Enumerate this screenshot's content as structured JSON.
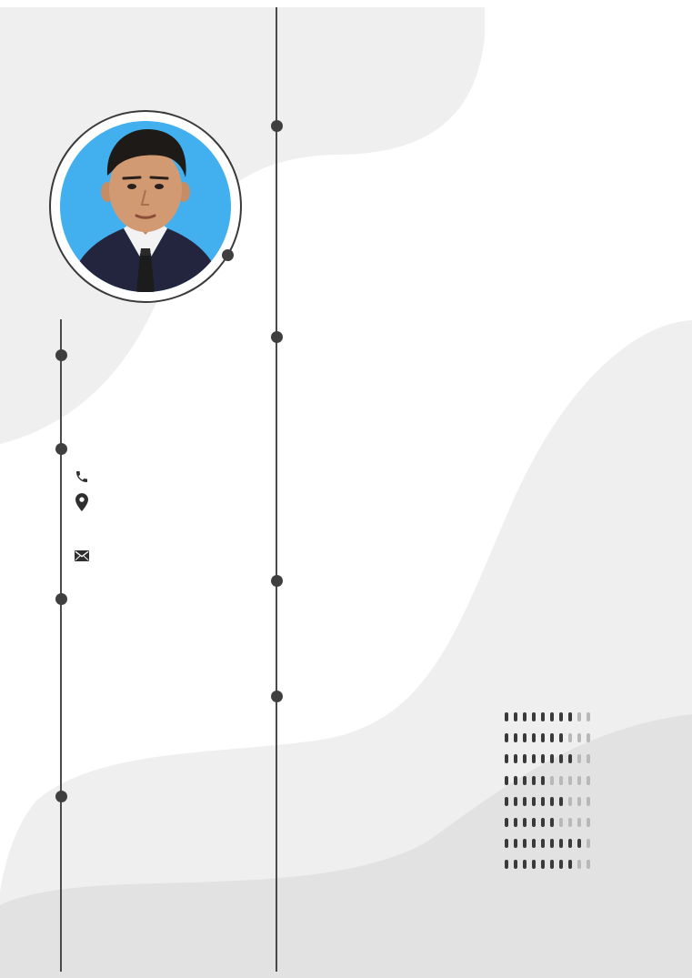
{
  "resume": {
    "photo": {
      "subject": "profile-photo",
      "background_color": "#42b0ef",
      "suit_color": "#23253f"
    },
    "contact_icons": [
      "phone-icon",
      "location-pin-icon",
      "mail-icon"
    ],
    "colors": {
      "accent_dark": "#3f3f3f",
      "wave_light": "#efefef",
      "wave_mid": "#e2e2e2",
      "rating_filled": "#3a3a3a",
      "rating_empty": "#b8b8b8"
    },
    "skill_ratings": [
      {
        "filled": 8,
        "total": 10
      },
      {
        "filled": 7,
        "total": 10
      },
      {
        "filled": 8,
        "total": 10
      },
      {
        "filled": 5,
        "total": 10
      },
      {
        "filled": 7,
        "total": 10
      },
      {
        "filled": 6,
        "total": 10
      },
      {
        "filled": 9,
        "total": 10
      },
      {
        "filled": 8,
        "total": 10
      }
    ]
  }
}
